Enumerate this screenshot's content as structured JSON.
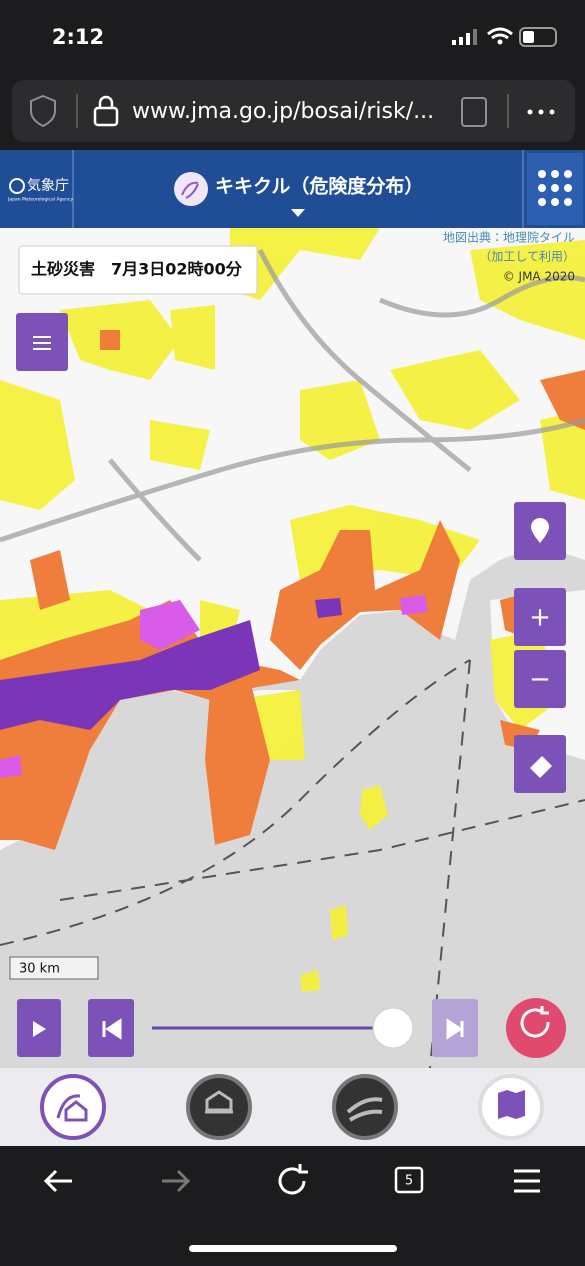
{
  "status_bar": {
    "time": "2:12"
  },
  "browser": {
    "url": "www.jma.go.jp/bosai/risk/...",
    "tab_count": "5"
  },
  "header": {
    "agency": "気象庁",
    "agency_en": "Japan Meteorological Agency",
    "title": "キキクル（危険度分布）"
  },
  "map": {
    "attribution": [
      "地図出典：地理院タイル",
      "（加工して利用）",
      "© JMA 2020"
    ],
    "info": "土砂災害　7月3日02時00分",
    "scale": "30 km",
    "zoom_in": "+",
    "zoom_out": "−"
  }
}
